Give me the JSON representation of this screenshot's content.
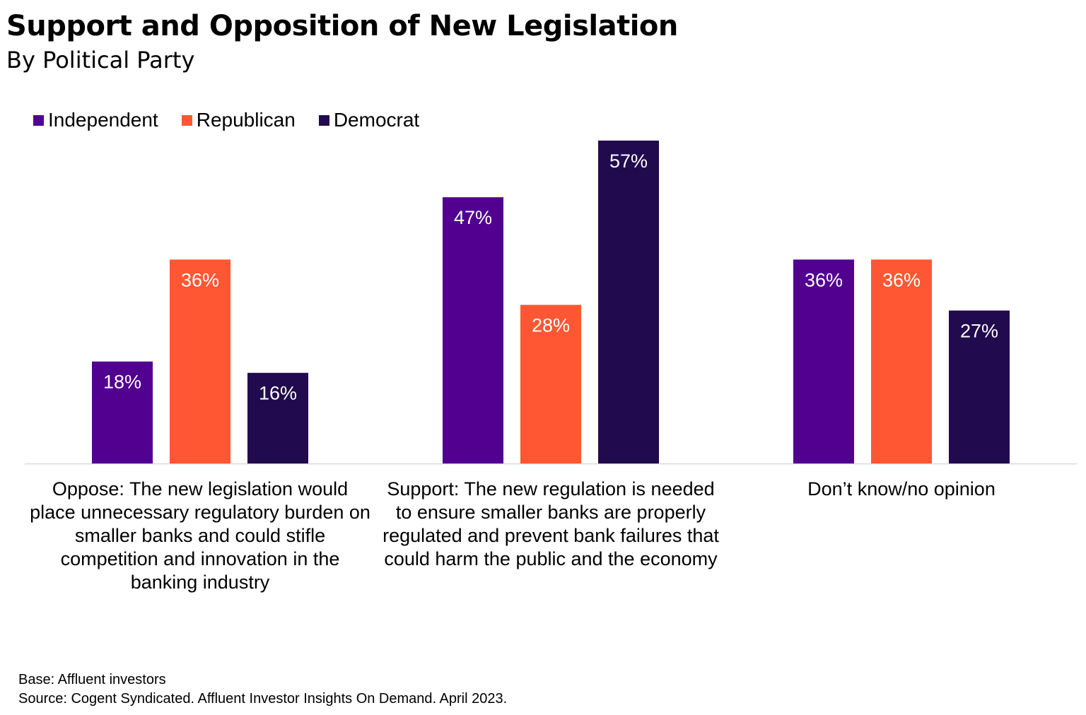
{
  "colors": {
    "independent": "#52008F",
    "republican": "#FF5733",
    "democrat": "#220A4E",
    "baseline": "#D9D9D9",
    "label_text": "#FFFFFF"
  },
  "chart_data": {
    "type": "bar",
    "title": "Support and Opposition of New Legislation",
    "subtitle": "By Political Party",
    "categories": [
      "Oppose: The new legislation would place unnecessary regulatory burden on smaller banks and could stifle competition and innovation in the banking industry",
      "Support: The new regulation is needed to ensure smaller banks are properly regulated and prevent bank failures that could harm the public and the economy",
      "Don’t know/no opinion"
    ],
    "series": [
      {
        "name": "Independent",
        "color": "#52008F",
        "values": [
          18,
          47,
          36
        ],
        "labels": [
          "18%",
          "47%",
          "36%"
        ]
      },
      {
        "name": "Republican",
        "color": "#FF5733",
        "values": [
          36,
          28,
          36
        ],
        "labels": [
          "36%",
          "28%",
          "36%"
        ]
      },
      {
        "name": "Democrat",
        "color": "#220A4E",
        "values": [
          16,
          57,
          27
        ],
        "labels": [
          "16%",
          "57%",
          "27%"
        ]
      }
    ],
    "xlabel": "",
    "ylabel": "",
    "ylim": [
      0,
      57
    ],
    "legend_position": "top-left",
    "grid": false
  },
  "footnotes": {
    "base": "Base: Affluent investors",
    "source": "Source: Cogent Syndicated. Affluent Investor Insights On Demand. April 2023."
  }
}
